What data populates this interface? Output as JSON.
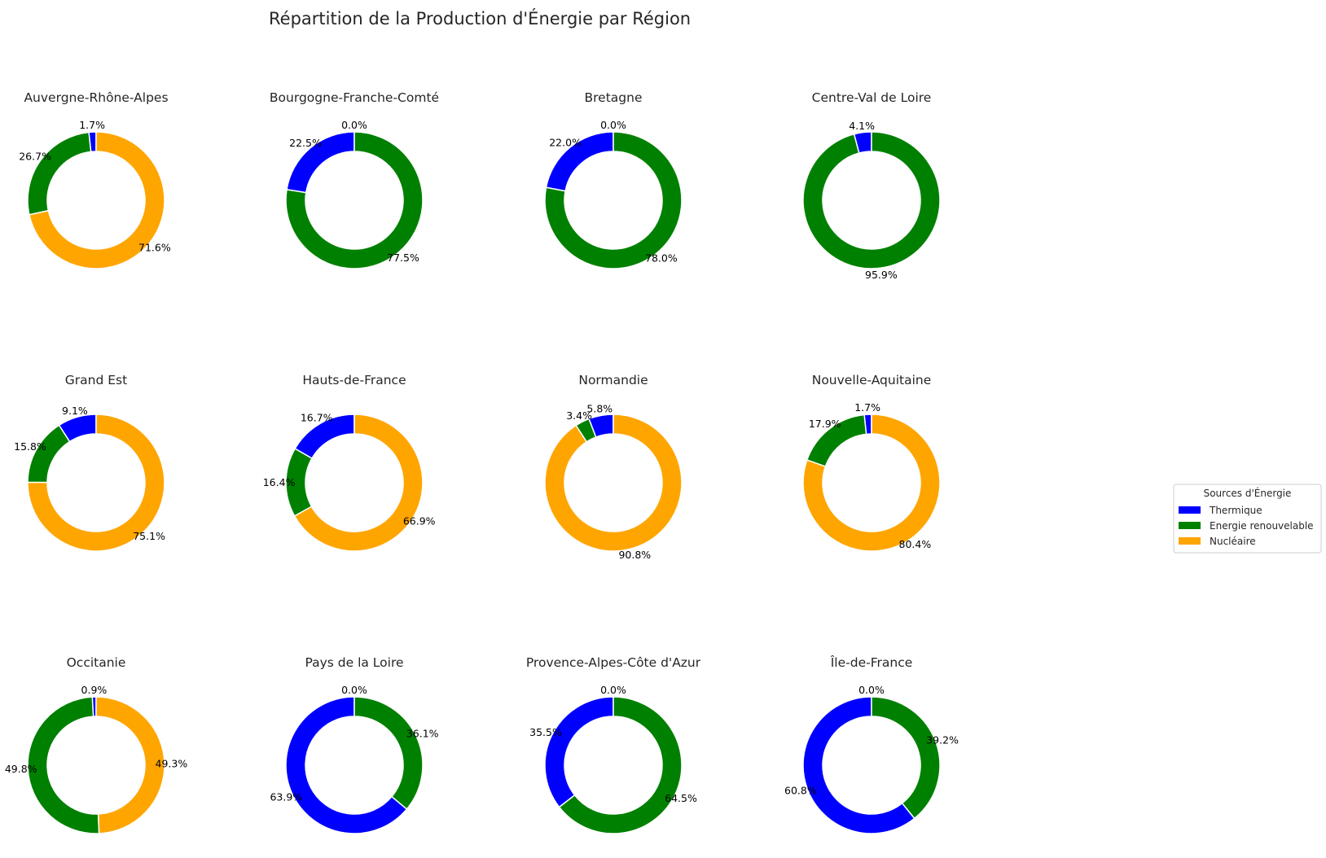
{
  "chart_data": {
    "type": "pie",
    "variant": "donut",
    "title": "Répartition de la Production d'Énergie par Région",
    "layout": {
      "rows": 3,
      "cols": 4
    },
    "categories": [
      "Thermique",
      "Energie renouvelable",
      "Nucléaire"
    ],
    "colors": {
      "Thermique": "#0000ff",
      "Energie renouvelable": "#008000",
      "Nucléaire": "#ffa500"
    },
    "legend": {
      "title": "Sources d'Énergie",
      "placement": "right",
      "entries": [
        "Thermique",
        "Energie renouvelable",
        "Nucléaire"
      ]
    },
    "start_angle_deg": 90,
    "direction": "counterclockwise",
    "regions": [
      {
        "name": "Auvergne-Rhône-Alpes",
        "values": [
          1.7,
          26.7,
          71.6
        ],
        "labels": [
          "1.7%",
          "26.7%",
          "71.6%"
        ]
      },
      {
        "name": "Bourgogne-Franche-Comté",
        "values": [
          22.5,
          77.5,
          0.0
        ],
        "labels": [
          "22.5%",
          "77.5%",
          "0.0%"
        ]
      },
      {
        "name": "Bretagne",
        "values": [
          22.0,
          78.0,
          0.0
        ],
        "labels": [
          "22.0%",
          "78.0%",
          "0.0%"
        ]
      },
      {
        "name": "Centre-Val de Loire",
        "values": [
          4.1,
          95.9,
          0.0
        ],
        "labels": [
          "4.1%",
          "95.9%",
          ""
        ]
      },
      {
        "name": "Grand Est",
        "values": [
          9.1,
          15.8,
          75.1
        ],
        "labels": [
          "9.1%",
          "15.8%",
          "75.1%"
        ]
      },
      {
        "name": "Hauts-de-France",
        "values": [
          16.7,
          16.4,
          66.9
        ],
        "labels": [
          "16.7%",
          "16.4%",
          "66.9%"
        ]
      },
      {
        "name": "Normandie",
        "values": [
          5.8,
          3.4,
          90.8
        ],
        "labels": [
          "5.8%",
          "3.4%",
          "90.8%"
        ]
      },
      {
        "name": "Nouvelle-Aquitaine",
        "values": [
          1.7,
          17.9,
          80.4
        ],
        "labels": [
          "1.7%",
          "17.9%",
          "80.4%"
        ]
      },
      {
        "name": "Occitanie",
        "values": [
          0.9,
          49.8,
          49.3
        ],
        "labels": [
          "0.9%",
          "49.8%",
          "49.3%"
        ]
      },
      {
        "name": "Pays de la Loire",
        "values": [
          63.9,
          36.1,
          0.0
        ],
        "labels": [
          "63.9%",
          "36.1%",
          "0.0%"
        ]
      },
      {
        "name": "Provence-Alpes-Côte d'Azur",
        "values": [
          35.5,
          64.5,
          0.0
        ],
        "labels": [
          "35.5%",
          "64.5%",
          "0.0%"
        ]
      },
      {
        "name": "Île-de-France",
        "values": [
          60.8,
          39.2,
          0.0
        ],
        "labels": [
          "60.8%",
          "39.2%",
          "0.0%"
        ]
      }
    ]
  }
}
